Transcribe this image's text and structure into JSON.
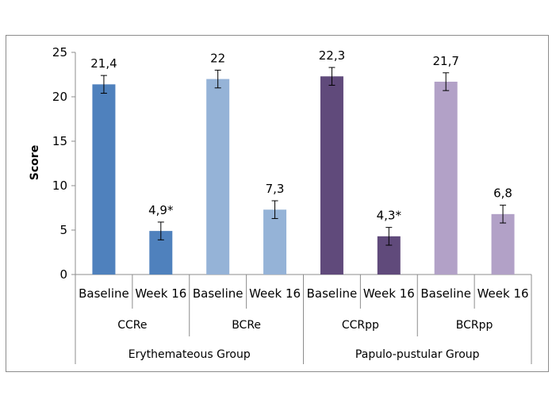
{
  "chart_data": {
    "type": "bar",
    "ylabel": "Score",
    "ylim": [
      0,
      25
    ],
    "yticks": [
      0,
      5,
      10,
      15,
      20,
      25
    ],
    "grid": false,
    "legend": "none",
    "bars": [
      {
        "category": "Baseline",
        "subgroup": "CCRe",
        "value": 21.4,
        "error": 1.0,
        "label": "21,4",
        "color": "#4f81bd"
      },
      {
        "category": "Week 16",
        "subgroup": "CCRe",
        "value": 4.9,
        "error": 1.0,
        "label": "4,9*",
        "color": "#4f81bd"
      },
      {
        "category": "Baseline",
        "subgroup": "BCRe",
        "value": 22.0,
        "error": 1.0,
        "label": "22",
        "color": "#95b3d7"
      },
      {
        "category": "Week 16",
        "subgroup": "BCRe",
        "value": 7.3,
        "error": 1.0,
        "label": "7,3",
        "color": "#95b3d7"
      },
      {
        "category": "Baseline",
        "subgroup": "CCRpp",
        "value": 22.3,
        "error": 1.0,
        "label": "22,3",
        "color": "#604a7b"
      },
      {
        "category": "Week 16",
        "subgroup": "CCRpp",
        "value": 4.3,
        "error": 1.0,
        "label": "4,3*",
        "color": "#604a7b"
      },
      {
        "category": "Baseline",
        "subgroup": "BCRpp",
        "value": 21.7,
        "error": 1.0,
        "label": "21,7",
        "color": "#b2a1c7"
      },
      {
        "category": "Week 16",
        "subgroup": "BCRpp",
        "value": 6.8,
        "error": 1.0,
        "label": "6,8",
        "color": "#b2a1c7"
      }
    ],
    "subgroups": [
      "CCRe",
      "BCRe",
      "CCRpp",
      "BCRpp"
    ],
    "groups": [
      "Erythemateous Group",
      "Papulo-pustular Group"
    ]
  }
}
